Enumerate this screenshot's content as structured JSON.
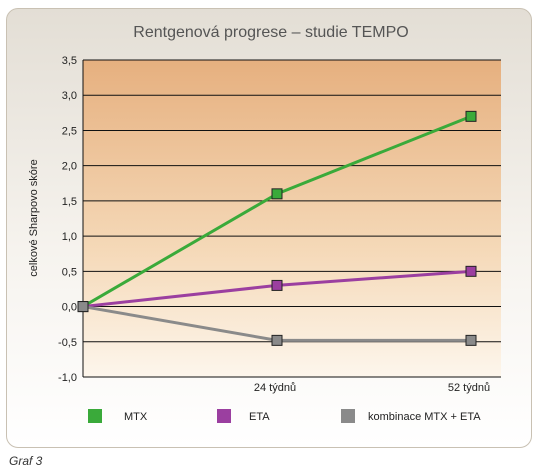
{
  "caption": "Graf 3",
  "chart_data": {
    "type": "line",
    "title": "Rentgenová progrese – studie TEMPO",
    "ylabel": "celkové Sharpovo skóre",
    "xlabel": "",
    "ylim": [
      -1.0,
      3.5
    ],
    "yticks": [
      {
        "value": 3.5,
        "label": "3,5"
      },
      {
        "value": 3.0,
        "label": "3,0"
      },
      {
        "value": 2.5,
        "label": "2,5"
      },
      {
        "value": 2.0,
        "label": "2,0"
      },
      {
        "value": 1.5,
        "label": "1,5"
      },
      {
        "value": 1.0,
        "label": "1,0"
      },
      {
        "value": 0.5,
        "label": "0,5"
      },
      {
        "value": 0.0,
        "label": "0,0"
      },
      {
        "value": -0.5,
        "label": "-0,5"
      },
      {
        "value": -1.0,
        "label": "-1,0"
      }
    ],
    "categories": [
      "",
      "24 týdnů",
      "52 týdnů"
    ],
    "series": [
      {
        "name": "MTX",
        "color": "#3aaa3a",
        "values": [
          0.0,
          1.6,
          2.7
        ]
      },
      {
        "name": "ETA",
        "color": "#9b3fa0",
        "values": [
          0.0,
          0.3,
          0.5
        ]
      },
      {
        "name": "kombinace MTX + ETA",
        "color": "#8a8a8a",
        "values": [
          0.0,
          -0.48,
          -0.48
        ]
      }
    ],
    "grid": true,
    "legend": "bottom"
  }
}
